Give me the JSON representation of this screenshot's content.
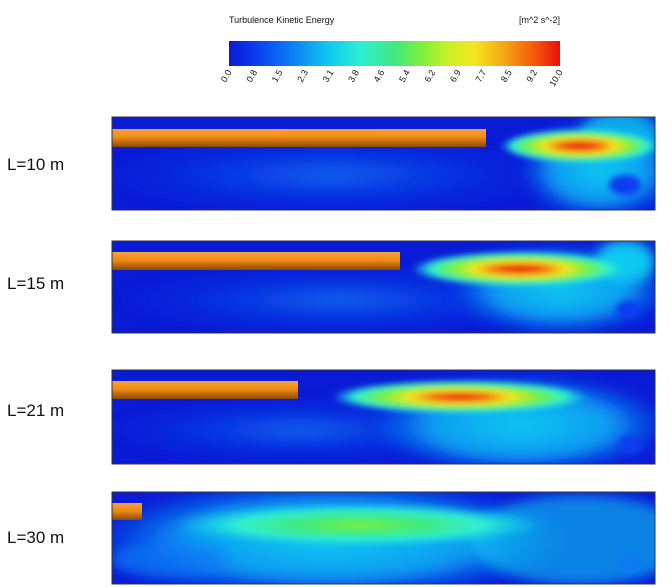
{
  "legend": {
    "title": "Turbulence Kinetic Energy",
    "unit": "[m^2 s^-2]",
    "min": 0.0,
    "max": 10.0,
    "colormap": "rainbow (blue-cyan-green-yellow-red)",
    "ticks": [
      "0.0",
      "0.8",
      "1.5",
      "2.3",
      "3.1",
      "3.8",
      "4.6",
      "5.4",
      "6.2",
      "6.9",
      "7.7",
      "8.5",
      "9.2",
      "10.0"
    ]
  },
  "colors": {
    "low": "#0a1bd6",
    "high": "#e8100a",
    "pipe": "#f08a14",
    "frame": "#333333"
  },
  "panels": [
    {
      "label": "L=10 m",
      "pipe_length_m": 10,
      "peak_tke": 10.0
    },
    {
      "label": "L=15 m",
      "pipe_length_m": 15,
      "peak_tke": 9.6
    },
    {
      "label": "L=21 m",
      "pipe_length_m": 21,
      "peak_tke": 9.8
    },
    {
      "label": "L=30 m",
      "pipe_length_m": 30,
      "peak_tke": 6.3
    }
  ]
}
